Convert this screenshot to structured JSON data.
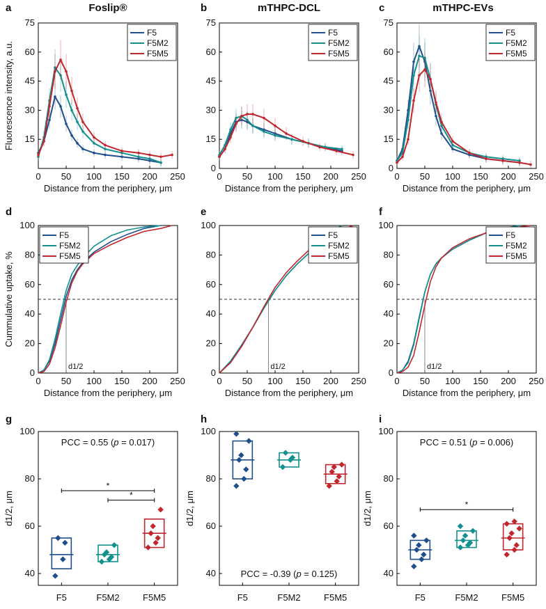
{
  "colors": {
    "F5": "#1f4e8c",
    "F5M2": "#12908e",
    "F5M5": "#c0262d",
    "axis": "#000000",
    "dash": "#333333"
  },
  "row_titles": {
    "a": "Foslip®",
    "b": "mTHPC-DCL",
    "c": "mTHPC-EVs"
  },
  "chart_data": [
    {
      "panel": "a",
      "type": "line",
      "title": "Foslip®",
      "xlabel": "Distance from the periphery, μm",
      "ylabel": "Fluorescence intensity, a.u.",
      "xlim": [
        0,
        250
      ],
      "ylim": [
        0,
        75
      ],
      "xticks": [
        "0",
        "50",
        "100",
        "150",
        "200",
        "250"
      ],
      "yticks": [
        "15",
        "30",
        "45",
        "60",
        "75"
      ],
      "legend": [
        "F5",
        "F5M2",
        "F5M5"
      ],
      "legend_pos": "top-right",
      "series": [
        {
          "name": "F5",
          "x": [
            0,
            10,
            20,
            30,
            40,
            50,
            60,
            70,
            80,
            100,
            120,
            150,
            180,
            200,
            220
          ],
          "y": [
            8,
            14,
            25,
            37,
            32,
            23,
            17,
            13,
            10,
            8,
            7,
            6,
            5,
            4,
            3
          ]
        },
        {
          "name": "F5M2",
          "x": [
            0,
            10,
            20,
            30,
            40,
            50,
            60,
            70,
            80,
            100,
            120,
            150,
            180,
            200,
            220
          ],
          "y": [
            6,
            16,
            35,
            52,
            48,
            38,
            30,
            24,
            19,
            13,
            10,
            8,
            6,
            5,
            3
          ]
        },
        {
          "name": "F5M5",
          "x": [
            0,
            10,
            20,
            30,
            40,
            50,
            60,
            70,
            80,
            100,
            120,
            150,
            180,
            200,
            220,
            240
          ],
          "y": [
            7,
            14,
            32,
            50,
            56,
            50,
            40,
            31,
            24,
            16,
            12,
            9,
            8,
            7,
            6,
            7
          ]
        }
      ]
    },
    {
      "panel": "b",
      "type": "line",
      "title": "mTHPC-DCL",
      "xlabel": "Distance from the periphery, μm",
      "ylabel": "",
      "xlim": [
        0,
        250
      ],
      "ylim": [
        0,
        75
      ],
      "xticks": [
        "0",
        "50",
        "100",
        "150",
        "200",
        "250"
      ],
      "yticks": [
        "0",
        "15",
        "30",
        "45",
        "60",
        "75"
      ],
      "legend": [
        "F5",
        "F5M2",
        "F5M5"
      ],
      "legend_pos": "top-right",
      "series": [
        {
          "name": "F5",
          "x": [
            0,
            10,
            20,
            30,
            40,
            50,
            60,
            80,
            100,
            130,
            160,
            190,
            220
          ],
          "y": [
            6,
            10,
            18,
            24,
            25,
            24,
            22,
            20,
            18,
            15,
            13,
            11,
            9
          ]
        },
        {
          "name": "F5M2",
          "x": [
            0,
            10,
            20,
            30,
            40,
            50,
            60,
            80,
            100,
            130,
            160,
            190,
            220
          ],
          "y": [
            7,
            12,
            20,
            26,
            27,
            25,
            22,
            19,
            17,
            15,
            13,
            11,
            10
          ]
        },
        {
          "name": "F5M5",
          "x": [
            0,
            10,
            20,
            30,
            40,
            50,
            60,
            80,
            100,
            120,
            150,
            180,
            210,
            240
          ],
          "y": [
            6,
            10,
            16,
            23,
            27,
            28,
            28,
            26,
            22,
            18,
            14,
            11,
            9,
            7
          ]
        }
      ]
    },
    {
      "panel": "c",
      "type": "line",
      "title": "mTHPC-EVs",
      "xlabel": "Distance from the periphery, μm",
      "ylabel": "",
      "xlim": [
        0,
        250
      ],
      "ylim": [
        0,
        75
      ],
      "xticks": [
        "0",
        "50",
        "100",
        "150",
        "200",
        "250"
      ],
      "yticks": [
        "0",
        "15",
        "30",
        "45",
        "60",
        "75"
      ],
      "legend": [
        "F5",
        "F5M2",
        "F5M5"
      ],
      "legend_pos": "top-right",
      "series": [
        {
          "name": "F5",
          "x": [
            0,
            10,
            20,
            30,
            40,
            50,
            60,
            70,
            80,
            100,
            130,
            160,
            190,
            220
          ],
          "y": [
            4,
            10,
            30,
            55,
            63,
            55,
            40,
            27,
            18,
            10,
            7,
            5,
            4,
            3
          ]
        },
        {
          "name": "F5M2",
          "x": [
            0,
            10,
            20,
            30,
            40,
            50,
            60,
            70,
            80,
            100,
            130,
            160,
            190,
            220
          ],
          "y": [
            4,
            8,
            25,
            48,
            58,
            57,
            46,
            33,
            22,
            12,
            8,
            6,
            5,
            4
          ]
        },
        {
          "name": "F5M5",
          "x": [
            0,
            10,
            20,
            30,
            40,
            50,
            60,
            70,
            80,
            100,
            130,
            160,
            190,
            220,
            240
          ],
          "y": [
            3,
            6,
            15,
            35,
            48,
            51,
            46,
            34,
            24,
            14,
            8,
            5,
            4,
            3,
            2
          ]
        }
      ]
    },
    {
      "panel": "d",
      "type": "line",
      "title": "",
      "xlabel": "Distance from the periphery, μm",
      "ylabel": "Cummulative uptake, %",
      "xlim": [
        0,
        250
      ],
      "ylim": [
        0,
        100
      ],
      "xticks": [
        "0",
        "50",
        "100",
        "150",
        "200",
        "250"
      ],
      "yticks": [
        "0",
        "20",
        "40",
        "60",
        "80",
        "100"
      ],
      "legend": [
        "F5",
        "F5M2",
        "F5M5"
      ],
      "legend_pos": "top-left",
      "annotation": "d1/2",
      "half_x": 50,
      "series": [
        {
          "name": "F5",
          "x": [
            0,
            10,
            20,
            30,
            40,
            50,
            60,
            70,
            80,
            100,
            130,
            160,
            190,
            220
          ],
          "y": [
            0,
            2,
            8,
            20,
            36,
            52,
            63,
            70,
            75,
            82,
            89,
            94,
            98,
            100
          ]
        },
        {
          "name": "F5M2",
          "x": [
            0,
            10,
            20,
            30,
            40,
            50,
            60,
            70,
            80,
            100,
            130,
            160,
            190,
            220
          ],
          "y": [
            0,
            2,
            9,
            23,
            40,
            56,
            67,
            73,
            78,
            86,
            93,
            97,
            99,
            100
          ]
        },
        {
          "name": "F5M5",
          "x": [
            0,
            10,
            20,
            30,
            40,
            50,
            60,
            70,
            80,
            100,
            130,
            160,
            190,
            220,
            240
          ],
          "y": [
            0,
            1,
            6,
            17,
            32,
            48,
            61,
            69,
            74,
            81,
            87,
            92,
            96,
            98,
            100
          ]
        }
      ]
    },
    {
      "panel": "e",
      "type": "line",
      "title": "",
      "xlabel": "Distance from the periphery, μm",
      "ylabel": "",
      "xlim": [
        0,
        250
      ],
      "ylim": [
        0,
        100
      ],
      "xticks": [
        "0",
        "50",
        "100",
        "150",
        "200",
        "250"
      ],
      "yticks": [
        "0",
        "20",
        "40",
        "60",
        "80",
        "100"
      ],
      "legend": [
        "F5",
        "F5M2",
        "F5M5"
      ],
      "legend_pos": "top-right",
      "annotation": "d1/2",
      "half_x": 88,
      "series": [
        {
          "name": "F5",
          "x": [
            0,
            20,
            40,
            60,
            80,
            100,
            120,
            140,
            160,
            180,
            200,
            220
          ],
          "y": [
            0,
            8,
            19,
            31,
            44,
            56,
            66,
            74,
            81,
            88,
            95,
            100
          ]
        },
        {
          "name": "F5M2",
          "x": [
            0,
            20,
            40,
            60,
            80,
            100,
            120,
            140,
            160,
            180,
            200,
            220
          ],
          "y": [
            0,
            8,
            19,
            31,
            44,
            56,
            66,
            74,
            81,
            89,
            96,
            100
          ]
        },
        {
          "name": "F5M5",
          "x": [
            0,
            20,
            40,
            60,
            80,
            100,
            120,
            140,
            160,
            180,
            200,
            220,
            240
          ],
          "y": [
            0,
            7,
            18,
            31,
            45,
            58,
            68,
            76,
            83,
            88,
            93,
            97,
            100
          ]
        }
      ]
    },
    {
      "panel": "f",
      "type": "line",
      "title": "",
      "xlabel": "Distance from the periphery, μm",
      "ylabel": "",
      "xlim": [
        0,
        250
      ],
      "ylim": [
        0,
        100
      ],
      "xticks": [
        "0",
        "50",
        "100",
        "150",
        "200",
        "250"
      ],
      "yticks": [
        "0",
        "20",
        "40",
        "60",
        "80",
        "100"
      ],
      "legend": [
        "F5",
        "F5M2",
        "F5M5"
      ],
      "legend_pos": "top-right",
      "annotation": "d1/2",
      "half_x": 50,
      "series": [
        {
          "name": "F5",
          "x": [
            0,
            10,
            20,
            30,
            40,
            50,
            60,
            70,
            80,
            100,
            130,
            160,
            190,
            220
          ],
          "y": [
            0,
            2,
            8,
            20,
            38,
            55,
            67,
            74,
            78,
            84,
            90,
            95,
            98,
            100
          ]
        },
        {
          "name": "F5M2",
          "x": [
            0,
            10,
            20,
            30,
            40,
            50,
            60,
            70,
            80,
            100,
            130,
            160,
            190,
            220
          ],
          "y": [
            0,
            2,
            7,
            19,
            37,
            55,
            67,
            74,
            78,
            84,
            90,
            95,
            98,
            100
          ]
        },
        {
          "name": "F5M5",
          "x": [
            0,
            10,
            20,
            30,
            40,
            50,
            60,
            70,
            80,
            100,
            130,
            160,
            190,
            220,
            240
          ],
          "y": [
            0,
            1,
            4,
            12,
            28,
            46,
            62,
            72,
            78,
            85,
            91,
            95,
            98,
            99,
            100
          ]
        }
      ]
    },
    {
      "panel": "g",
      "type": "box",
      "ylabel": "d1/2, μm",
      "ylim": [
        35,
        100
      ],
      "yticks": [
        "40",
        "60",
        "80",
        "100"
      ],
      "categories": [
        "F5",
        "F5M2",
        "F5M5"
      ],
      "annotation": "PCC = 0.55 (p = 0.017)",
      "annotation_parts": [
        "PCC = 0.55 (",
        "p",
        " = 0.017)"
      ],
      "annotation_pos": "top",
      "boxes": [
        {
          "name": "F5",
          "low": 42,
          "high": 55,
          "mean": 48,
          "points": [
            39,
            46,
            53,
            55
          ]
        },
        {
          "name": "F5M2",
          "low": 45,
          "high": 52,
          "mean": 48,
          "points": [
            45,
            46,
            47,
            48,
            49,
            52
          ]
        },
        {
          "name": "F5M5",
          "low": 51,
          "high": 63,
          "mean": 57,
          "points": [
            51,
            53,
            55,
            57,
            60,
            67
          ]
        }
      ],
      "sig": [
        {
          "from": 0,
          "to": 2,
          "y": 75,
          "label": "*"
        },
        {
          "from": 1,
          "to": 2,
          "y": 71,
          "label": "*"
        }
      ]
    },
    {
      "panel": "h",
      "type": "box",
      "ylabel": "d1/2, μm",
      "ylim": [
        35,
        100
      ],
      "yticks": [
        "40",
        "60",
        "80",
        "100"
      ],
      "categories": [
        "F5",
        "F5M2",
        "F5M5"
      ],
      "annotation": "PCC = -0.39 (p = 0.125)",
      "annotation_parts": [
        "PCC = -0.39 (",
        "p",
        " = 0.125)"
      ],
      "annotation_pos": "bottom",
      "boxes": [
        {
          "name": "F5",
          "low": 80,
          "high": 96,
          "mean": 88,
          "points": [
            77,
            80,
            84,
            88,
            90,
            96,
            99
          ]
        },
        {
          "name": "F5M2",
          "low": 85,
          "high": 91,
          "mean": 88,
          "points": [
            85,
            88,
            89,
            91
          ]
        },
        {
          "name": "F5M5",
          "low": 78,
          "high": 86,
          "mean": 82,
          "points": [
            77,
            79,
            81,
            83,
            85,
            86
          ]
        }
      ],
      "sig": []
    },
    {
      "panel": "i",
      "type": "box",
      "ylabel": "d1/2, μm",
      "ylim": [
        35,
        100
      ],
      "yticks": [
        "40",
        "60",
        "80",
        "100"
      ],
      "categories": [
        "F5",
        "F5M2",
        "F5M5"
      ],
      "annotation": "PCC = 0.51 (p = 0.006)",
      "annotation_parts": [
        "PCC = 0.51 (",
        "p",
        " = 0.006)"
      ],
      "annotation_pos": "top",
      "boxes": [
        {
          "name": "F5",
          "low": 46,
          "high": 54,
          "mean": 50,
          "points": [
            43,
            46,
            48,
            50,
            52,
            54,
            56
          ]
        },
        {
          "name": "F5M2",
          "low": 51,
          "high": 58,
          "mean": 54,
          "points": [
            51,
            52,
            53,
            54,
            56,
            58,
            60
          ]
        },
        {
          "name": "F5M5",
          "low": 50,
          "high": 61,
          "mean": 55,
          "points": [
            48,
            50,
            52,
            55,
            57,
            59,
            61,
            62
          ]
        }
      ],
      "sig": [
        {
          "from": 0,
          "to": 2,
          "y": 67,
          "label": "*"
        }
      ]
    }
  ]
}
